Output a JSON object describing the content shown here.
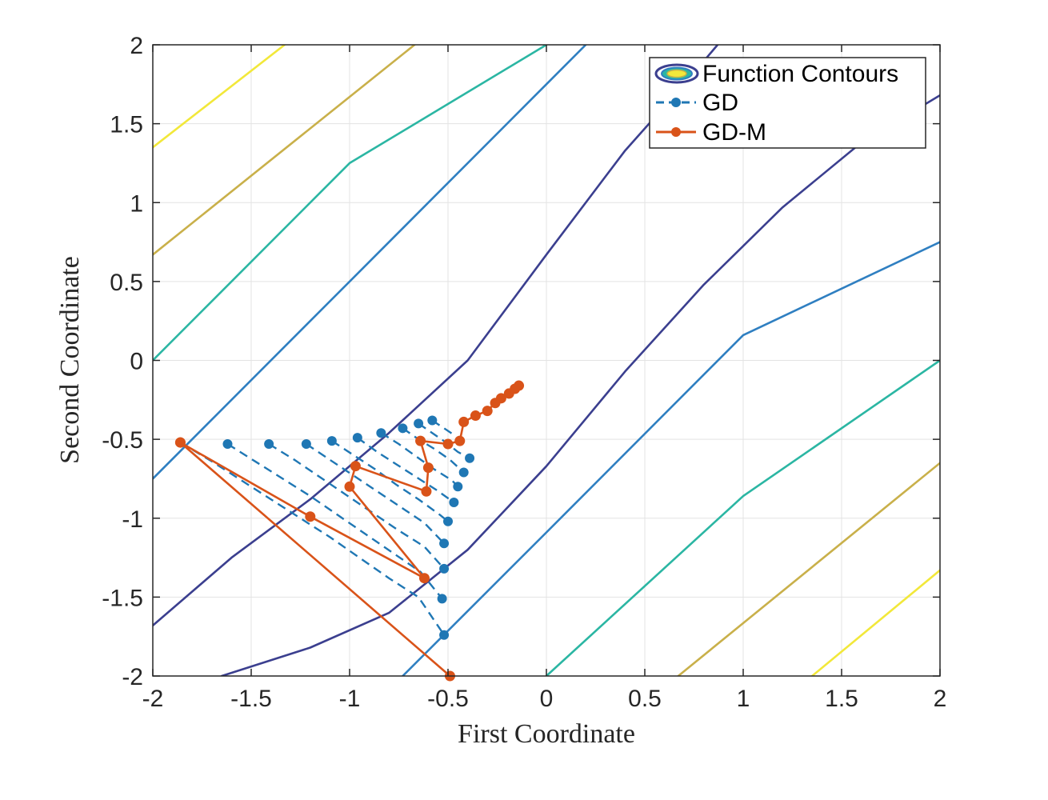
{
  "chart_data": {
    "type": "line",
    "title": "",
    "xlabel": "First Coordinate",
    "ylabel": "Second Coordinate",
    "xlim": [
      -2,
      2
    ],
    "ylim": [
      -2,
      2
    ],
    "xticks": [
      -2,
      -1.5,
      -1,
      -0.5,
      0,
      0.5,
      1,
      1.5,
      2
    ],
    "yticks": [
      -2,
      -1.5,
      -1,
      -0.5,
      0,
      0.5,
      1,
      1.5,
      2
    ],
    "xtick_labels": [
      "-2",
      "-1.5",
      "-1",
      "-0.5",
      "0",
      "0.5",
      "1",
      "1.5",
      "2"
    ],
    "ytick_labels": [
      "-2",
      "-1.5",
      "-1",
      "-0.5",
      "0",
      "0.5",
      "1",
      "1.5",
      "2"
    ],
    "grid": true,
    "legend_position": "top-right",
    "legend": [
      "Function Contours",
      "GD",
      "GD-M"
    ],
    "contours": {
      "name": "Function Contours",
      "colors": [
        "#3b3f8f",
        "#2f7fc1",
        "#2bb6a3",
        "#c9b04a",
        "#f2e83a"
      ],
      "lines": [
        {
          "level": 1,
          "points": [
            [
              -2.0,
              -1.68
            ],
            [
              -1.6,
              -1.25
            ],
            [
              -1.2,
              -0.88
            ],
            [
              -0.8,
              -0.46
            ],
            [
              -0.4,
              0.0
            ],
            [
              0.0,
              0.67
            ],
            [
              0.4,
              1.33
            ],
            [
              0.7,
              1.75
            ],
            [
              0.87,
              2.0
            ]
          ]
        },
        {
          "level": 1,
          "points": [
            [
              -1.65,
              -2.0
            ],
            [
              -1.2,
              -1.82
            ],
            [
              -0.8,
              -1.6
            ],
            [
              -0.4,
              -1.2
            ],
            [
              0.0,
              -0.67
            ],
            [
              0.4,
              -0.07
            ],
            [
              0.8,
              0.48
            ],
            [
              1.2,
              0.97
            ],
            [
              1.6,
              1.38
            ],
            [
              2.0,
              1.68
            ]
          ]
        },
        {
          "level": 2,
          "points": [
            [
              -2.0,
              -0.75
            ],
            [
              -1.0,
              0.5
            ],
            [
              0.0,
              1.75
            ],
            [
              0.2,
              2.0
            ]
          ]
        },
        {
          "level": 2,
          "points": [
            [
              -0.73,
              -2.0
            ],
            [
              0.0,
              -1.09
            ],
            [
              1.0,
              0.16
            ],
            [
              2.0,
              0.75
            ]
          ]
        },
        {
          "level": 3,
          "points": [
            [
              -2.0,
              0.0
            ],
            [
              -1.0,
              1.25
            ],
            [
              0.0,
              2.0
            ]
          ]
        },
        {
          "level": 3,
          "points": [
            [
              0.0,
              -2.0
            ],
            [
              1.0,
              -0.86
            ],
            [
              2.0,
              0.0
            ]
          ]
        },
        {
          "level": 4,
          "points": [
            [
              -2.0,
              0.67
            ],
            [
              -0.67,
              2.0
            ]
          ]
        },
        {
          "level": 4,
          "points": [
            [
              0.67,
              -2.0
            ],
            [
              2.0,
              -0.65
            ]
          ]
        },
        {
          "level": 5,
          "points": [
            [
              -2.0,
              1.35
            ],
            [
              -1.33,
              2.0
            ]
          ]
        },
        {
          "level": 5,
          "points": [
            [
              1.35,
              -2.0
            ],
            [
              2.0,
              -1.33
            ]
          ]
        }
      ]
    },
    "series": [
      {
        "name": "GD",
        "color": "#1f77b4",
        "style": "dashed",
        "paths": [
          [
            [
              -1.86,
              -0.52
            ],
            [
              -1.7,
              -0.64
            ],
            [
              -1.55,
              -0.76
            ],
            [
              -1.4,
              -0.88
            ],
            [
              -1.25,
              -1.0
            ],
            [
              -1.1,
              -1.12
            ],
            [
              -0.95,
              -1.25
            ],
            [
              -0.8,
              -1.38
            ],
            [
              -0.65,
              -1.5
            ],
            [
              -0.52,
              -1.74
            ]
          ],
          [
            [
              -1.62,
              -0.53
            ],
            [
              -1.48,
              -0.64
            ],
            [
              -1.34,
              -0.75
            ],
            [
              -1.2,
              -0.86
            ],
            [
              -1.06,
              -0.98
            ],
            [
              -0.92,
              -1.1
            ],
            [
              -0.78,
              -1.22
            ],
            [
              -0.64,
              -1.34
            ],
            [
              -0.53,
              -1.51
            ]
          ],
          [
            [
              -1.41,
              -0.53
            ],
            [
              -1.28,
              -0.63
            ],
            [
              -1.15,
              -0.74
            ],
            [
              -1.02,
              -0.85
            ],
            [
              -0.89,
              -0.96
            ],
            [
              -0.76,
              -1.07
            ],
            [
              -0.62,
              -1.18
            ],
            [
              -0.52,
              -1.32
            ]
          ],
          [
            [
              -1.22,
              -0.53
            ],
            [
              -1.1,
              -0.63
            ],
            [
              -0.98,
              -0.73
            ],
            [
              -0.86,
              -0.83
            ],
            [
              -0.74,
              -0.93
            ],
            [
              -0.62,
              -1.03
            ],
            [
              -0.52,
              -1.16
            ]
          ],
          [
            [
              -1.09,
              -0.51
            ],
            [
              -0.98,
              -0.6
            ],
            [
              -0.87,
              -0.69
            ],
            [
              -0.76,
              -0.79
            ],
            [
              -0.65,
              -0.88
            ],
            [
              -0.54,
              -0.98
            ],
            [
              -0.5,
              -1.02
            ]
          ],
          [
            [
              -0.96,
              -0.49
            ],
            [
              -0.86,
              -0.58
            ],
            [
              -0.76,
              -0.66
            ],
            [
              -0.66,
              -0.74
            ],
            [
              -0.56,
              -0.82
            ],
            [
              -0.47,
              -0.9
            ]
          ],
          [
            [
              -0.84,
              -0.46
            ],
            [
              -0.75,
              -0.53
            ],
            [
              -0.66,
              -0.61
            ],
            [
              -0.57,
              -0.69
            ],
            [
              -0.48,
              -0.76
            ],
            [
              -0.45,
              -0.8
            ]
          ],
          [
            [
              -0.73,
              -0.43
            ],
            [
              -0.65,
              -0.5
            ],
            [
              -0.57,
              -0.56
            ],
            [
              -0.49,
              -0.63
            ],
            [
              -0.42,
              -0.71
            ]
          ],
          [
            [
              -0.65,
              -0.4
            ],
            [
              -0.58,
              -0.46
            ],
            [
              -0.51,
              -0.52
            ],
            [
              -0.45,
              -0.58
            ],
            [
              -0.39,
              -0.62
            ]
          ],
          [
            [
              -0.58,
              -0.38
            ],
            [
              -0.52,
              -0.43
            ],
            [
              -0.46,
              -0.48
            ]
          ]
        ],
        "markers": [
          [
            -1.62,
            -0.53
          ],
          [
            -1.41,
            -0.53
          ],
          [
            -1.22,
            -0.53
          ],
          [
            -1.09,
            -0.51
          ],
          [
            -0.96,
            -0.49
          ],
          [
            -0.84,
            -0.46
          ],
          [
            -0.73,
            -0.43
          ],
          [
            -0.65,
            -0.4
          ],
          [
            -0.58,
            -0.38
          ],
          [
            -0.39,
            -0.62
          ],
          [
            -0.42,
            -0.71
          ],
          [
            -0.45,
            -0.8
          ],
          [
            -0.47,
            -0.9
          ],
          [
            -0.5,
            -1.02
          ],
          [
            -0.52,
            -1.16
          ],
          [
            -0.52,
            -1.32
          ],
          [
            -0.53,
            -1.51
          ],
          [
            -0.52,
            -1.74
          ]
        ]
      },
      {
        "name": "GD-M",
        "color": "#d95319",
        "style": "solid",
        "points": [
          [
            -1.86,
            -0.52
          ],
          [
            -0.49,
            -2.0
          ],
          [
            -1.86,
            -0.52
          ],
          [
            -1.2,
            -0.99
          ],
          [
            -0.62,
            -1.38
          ],
          [
            -1.0,
            -0.8
          ],
          [
            -0.97,
            -0.67
          ],
          [
            -0.61,
            -0.83
          ],
          [
            -0.6,
            -0.68
          ],
          [
            -0.64,
            -0.51
          ],
          [
            -0.5,
            -0.53
          ],
          [
            -0.44,
            -0.51
          ],
          [
            -0.42,
            -0.39
          ],
          [
            -0.36,
            -0.35
          ],
          [
            -0.3,
            -0.32
          ],
          [
            -0.26,
            -0.27
          ],
          [
            -0.23,
            -0.24
          ],
          [
            -0.19,
            -0.21
          ],
          [
            -0.16,
            -0.18
          ],
          [
            -0.14,
            -0.16
          ]
        ]
      }
    ]
  }
}
